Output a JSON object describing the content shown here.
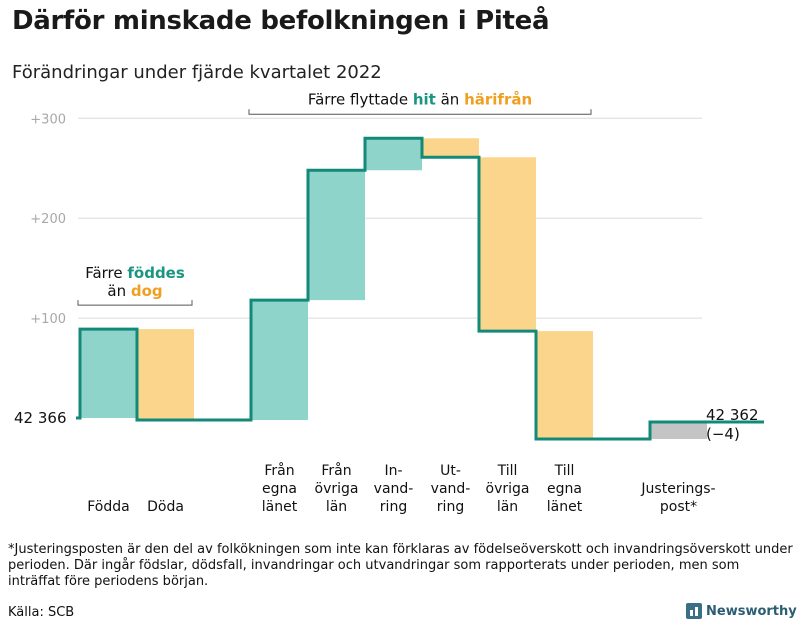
{
  "header": {
    "title": "Därför minskade befolkningen i Piteå",
    "subtitle": "Förändringar under fjärde kvartalet 2022"
  },
  "chart_data": {
    "type": "waterfall",
    "start_value": 0,
    "start_label": "42 366",
    "end_label": "42 362",
    "end_change_label": "(−4)",
    "y_ticks": [
      100,
      200,
      300
    ],
    "y_tick_labels": [
      "+100",
      "+200",
      "+300"
    ],
    "ylim": [
      -25,
      310
    ],
    "colors": {
      "increase": "#8fd4ca",
      "decrease": "#fbd58b",
      "adjustment": "#c4c4c4",
      "line": "#138a78",
      "label_green": "#1a9680",
      "label_orange": "#f0a020"
    },
    "steps": [
      {
        "category": "Födda",
        "lines": [
          "Födda"
        ],
        "change": 89,
        "kind": "increase"
      },
      {
        "category": "Döda",
        "lines": [
          "Döda"
        ],
        "change": -91,
        "kind": "decrease"
      },
      {
        "category": "",
        "lines": [],
        "change": 0,
        "kind": "none"
      },
      {
        "category": "Från egna länet",
        "lines": [
          "Från",
          "egna",
          "länet"
        ],
        "change": 120,
        "kind": "increase"
      },
      {
        "category": "Från övriga län",
        "lines": [
          "Från",
          "övriga",
          "län"
        ],
        "change": 130,
        "kind": "increase"
      },
      {
        "category": "Invandring",
        "lines": [
          "In-",
          "vand-",
          "ring"
        ],
        "change": 32,
        "kind": "increase"
      },
      {
        "category": "Utvandring",
        "lines": [
          "Ut-",
          "vand-",
          "ring"
        ],
        "change": -19,
        "kind": "decrease"
      },
      {
        "category": "Till övriga län",
        "lines": [
          "Till",
          "övriga",
          "län"
        ],
        "change": -174,
        "kind": "decrease"
      },
      {
        "category": "Till egna länet",
        "lines": [
          "Till",
          "egna",
          "länet"
        ],
        "change": -108,
        "kind": "decrease"
      },
      {
        "category": "",
        "lines": [],
        "change": 0,
        "kind": "none"
      },
      {
        "category": "Justeringspost*",
        "lines": [
          "Justerings-",
          "post*"
        ],
        "change": 17,
        "kind": "adjustment"
      },
      {
        "category": "",
        "lines": [],
        "change": 0,
        "kind": "none"
      }
    ],
    "annotations": [
      {
        "from_step": 0,
        "to_step": 1,
        "line1": "Färre",
        "line1_green": "föddes",
        "line2_prefix": "än",
        "line2_orange": "dog"
      },
      {
        "from_step": 3,
        "to_step": 8,
        "line1": "Färre flyttade",
        "line1_green": "hit",
        "line2_prefix": "än",
        "line2_orange": "härifrån"
      }
    ]
  },
  "footnote": "*Justeringsposten är den del av folkökningen som inte kan förklaras av födelseöverskott och invandringsöverskott under perioden. Där ingår födslar, dödsfall, invandringar och utvandringar som rapporterats under perioden, men som inträffat före periodens början.",
  "source": "Källa: SCB",
  "brand": "Newsworthy"
}
